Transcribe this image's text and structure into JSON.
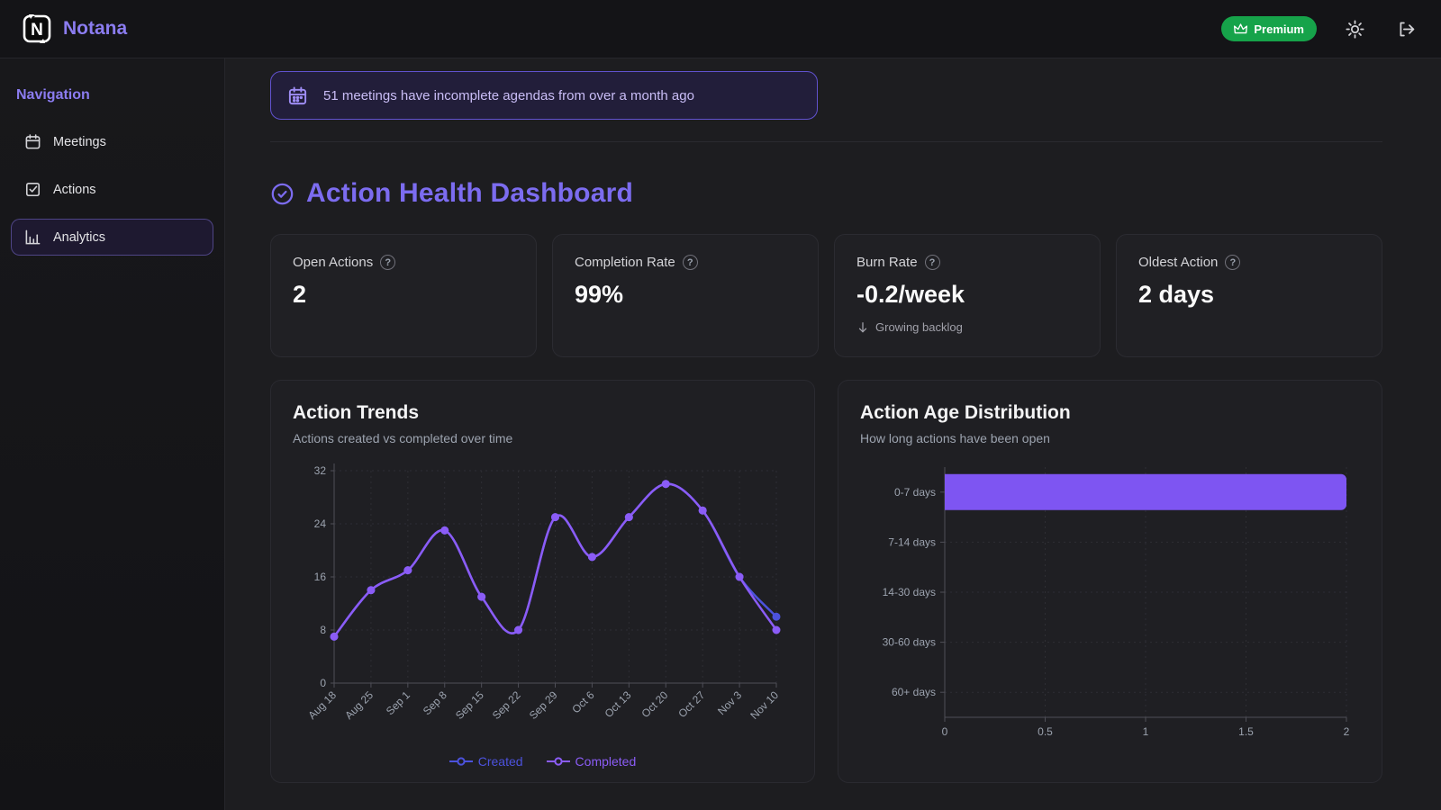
{
  "app": {
    "name": "Notana"
  },
  "topbar": {
    "premium_label": "Premium",
    "icons": [
      "crown-icon",
      "sun-icon",
      "logout-icon"
    ]
  },
  "sidebar": {
    "title": "Navigation",
    "items": [
      {
        "label": "Meetings",
        "icon": "calendar-icon",
        "active": false
      },
      {
        "label": "Actions",
        "icon": "checkbox-icon",
        "active": false
      },
      {
        "label": "Analytics",
        "icon": "bar-chart-icon",
        "active": true
      }
    ]
  },
  "banner": {
    "icon": "calendar-icon",
    "text": "51 meetings have incomplete agendas from over a month ago"
  },
  "section": {
    "icon": "check-circle-icon",
    "title": "Action Health Dashboard"
  },
  "stats": [
    {
      "label": "Open Actions",
      "value": "2"
    },
    {
      "label": "Completion Rate",
      "value": "99%"
    },
    {
      "label": "Burn Rate",
      "value": "-0.2/week",
      "note": "Growing backlog",
      "note_icon": "arrow-down-icon"
    },
    {
      "label": "Oldest Action",
      "value": "2 days"
    }
  ],
  "chart_data": [
    {
      "type": "line",
      "title": "Action Trends",
      "subtitle": "Actions created vs completed over time",
      "x": [
        "Aug 18",
        "Aug 25",
        "Sep 1",
        "Sep 8",
        "Sep 15",
        "Sep 22",
        "Sep 29",
        "Oct 6",
        "Oct 13",
        "Oct 20",
        "Oct 27",
        "Nov 3",
        "Nov 10"
      ],
      "series": [
        {
          "name": "Created",
          "color": "#4c52dd",
          "values": [
            7,
            14,
            17,
            23,
            13,
            8,
            25,
            19,
            25,
            30,
            26,
            16,
            10
          ]
        },
        {
          "name": "Completed",
          "color": "#8b5cf6",
          "values": [
            7,
            14,
            17,
            23,
            13,
            8,
            25,
            19,
            25,
            30,
            26,
            16,
            8
          ]
        }
      ],
      "ylim": [
        0,
        32
      ],
      "yticks": [
        0,
        8,
        16,
        24,
        32
      ],
      "grid": true,
      "legend_position": "bottom"
    },
    {
      "type": "bar",
      "orientation": "horizontal",
      "title": "Action Age Distribution",
      "subtitle": "How long actions have been open",
      "categories": [
        "0-7 days",
        "7-14 days",
        "14-30 days",
        "30-60 days",
        "60+ days"
      ],
      "values": [
        2,
        0,
        0,
        0,
        0
      ],
      "xlim": [
        0,
        2
      ],
      "xticks": [
        0,
        0.5,
        1,
        1.5,
        2
      ],
      "bar_color": "#7e55f2",
      "grid": true
    }
  ],
  "colors": {
    "accent": "#8b7cf0",
    "premium_green": "#16a34a",
    "banner_border": "#6152cf",
    "created_line": "#4c52dd",
    "completed_line": "#8b5cf6",
    "bar_fill": "#7e55f2"
  }
}
